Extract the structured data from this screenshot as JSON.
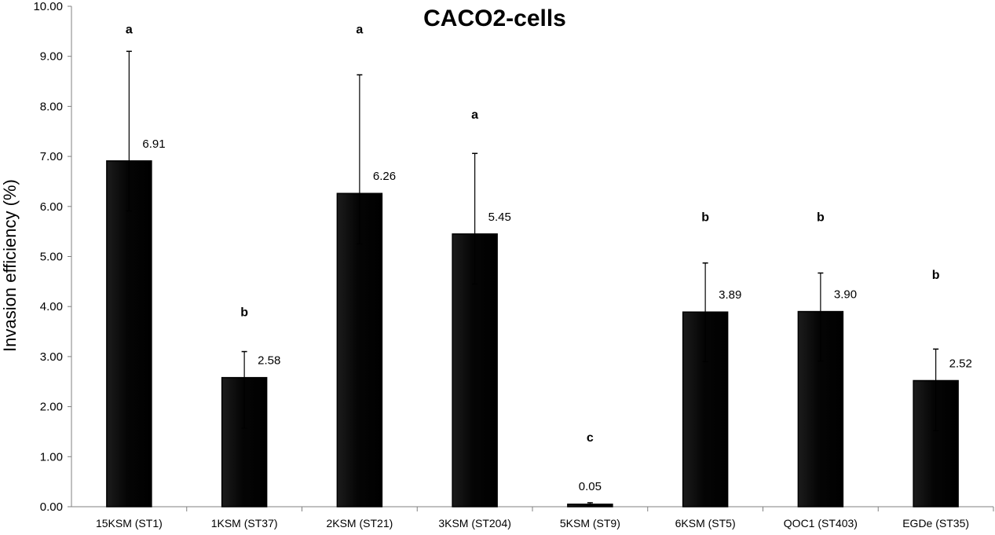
{
  "chart_data": {
    "type": "bar",
    "title": "CACO2-cells",
    "xlabel": "",
    "ylabel": "Invasion efficiency (%)",
    "ylim": [
      0,
      10
    ],
    "yticks": [
      "0.00",
      "1.00",
      "2.00",
      "3.00",
      "4.00",
      "5.00",
      "6.00",
      "7.00",
      "8.00",
      "9.00",
      "10.00"
    ],
    "grid": false,
    "categories": [
      "15KSM (ST1)",
      "1KSM (ST37)",
      "2KSM (ST21)",
      "3KSM (ST204)",
      "5KSM (ST9)",
      "6KSM (ST5)",
      "QOC1 (ST403)",
      "EGDe (ST35)"
    ],
    "values": [
      6.91,
      2.58,
      6.26,
      5.45,
      0.05,
      3.89,
      3.9,
      2.52
    ],
    "value_labels": [
      "6.91",
      "2.58",
      "6.26",
      "5.45",
      "0.05",
      "3.89",
      "3.90",
      "2.52"
    ],
    "error_upper": [
      9.1,
      3.1,
      8.63,
      7.06,
      0.08,
      4.87,
      4.67,
      3.15
    ],
    "error_lower": [
      5.91,
      1.57,
      5.25,
      4.45,
      0.02,
      2.9,
      2.91,
      1.52
    ],
    "significance": [
      "a",
      "b",
      "a",
      "a",
      "c",
      "b",
      "b",
      "b"
    ],
    "significance_y": [
      9.55,
      3.9,
      9.55,
      7.85,
      1.4,
      5.8,
      5.8,
      4.65
    ],
    "colors": {
      "bar": "#050505",
      "bar_edge": "#000000",
      "axis": "#808080",
      "error": "#000000"
    }
  }
}
